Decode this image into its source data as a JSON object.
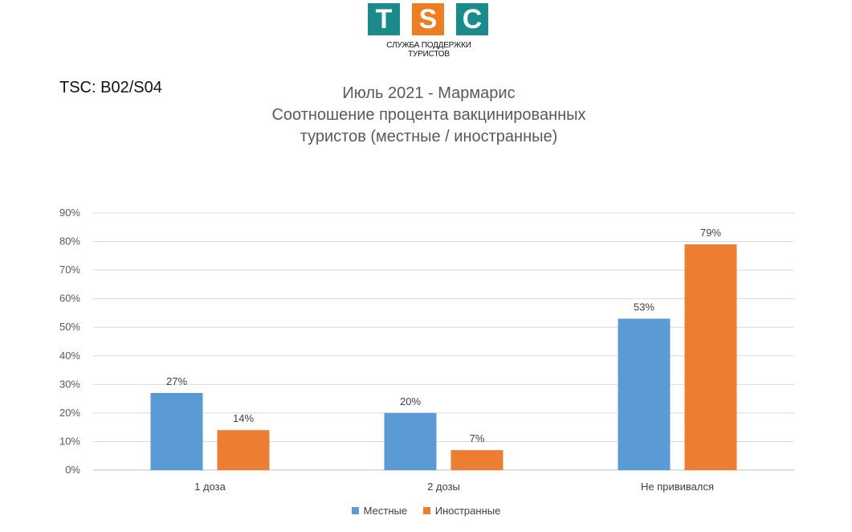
{
  "logo": {
    "letters": [
      "T",
      "S",
      "C"
    ],
    "tagline": "СЛУЖБА ПОДДЕРЖКИ ТУРИСТОВ"
  },
  "code": "TSC: B02/S04",
  "chart_data": {
    "type": "bar",
    "title": [
      "Июль 2021 - Мармарис",
      "Соотношение процента вакцинированных",
      "туристов (местные / иностранные)"
    ],
    "categories": [
      "1 доза",
      "2 дозы",
      "Не прививался"
    ],
    "series": [
      {
        "name": "Местные",
        "values": [
          27,
          20,
          53
        ],
        "color": "#5b9bd5"
      },
      {
        "name": "Иностранные",
        "values": [
          14,
          7,
          79
        ],
        "color": "#ed7d31"
      }
    ],
    "ylim": [
      0,
      90
    ],
    "yticks": [
      0,
      10,
      20,
      30,
      40,
      50,
      60,
      70,
      80,
      90
    ],
    "value_suffix": "%",
    "grid": true,
    "legend": "bottom"
  }
}
